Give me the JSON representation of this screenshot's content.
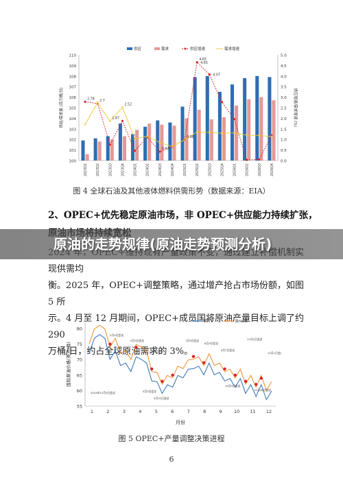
{
  "banner": {
    "title": "原油的走势规律(原油走势预测分析)"
  },
  "figure4": {
    "caption": "图 4  全球石油及其他液体燃料供需形势（数据来源：EIA）"
  },
  "section": {
    "heading_line1": "2、OPEC+优先稳定原油市场，非 OPEC+供应能力持续扩张，",
    "heading_line2": "原油市场将持续宽松",
    "para_lines": [
      "2024 年，OPEC+维持现有产量政策不变，通过建立补偿机制实现供需均",
      "衡。2025 年，OPEC+调整策略，通过增产抢占市场份额，如图 5 所",
      "示。4 月至 12 月期间，OPEC+成员国将原油产量目标上调了约 290",
      "万桶/日，约占全球原油需求的 3%。"
    ]
  },
  "figure5": {
    "caption": "图 5  OPEC+产量调整决策进程"
  },
  "page_number": "6",
  "chart_data": [
    {
      "type": "bar",
      "categories": [
        "2023Q1",
        "2023Q2",
        "2023Q3",
        "2023Q4",
        "2024Q1",
        "2024Q2",
        "2024Q3",
        "2024Q4",
        "2025Q1",
        "2025Q2",
        "2025Q3",
        "2025Q4",
        "2026Q1",
        "2026Q2",
        "2026Q3",
        "2026Q4"
      ],
      "ylabel": "供给/需求量 (百万桶/日)",
      "y2label": "供应增速/需求增速 (%)",
      "ylim": [
        100,
        110
      ],
      "y2lim": [
        0,
        5
      ],
      "yticks": [
        "100",
        "101",
        "102",
        "103",
        "104",
        "105",
        "106",
        "107",
        "108",
        "109",
        "110"
      ],
      "y2ticks": [
        "0.0",
        "0.5",
        "1.0",
        "1.5",
        "2.0",
        "2.5",
        "3.0",
        "3.5",
        "4.0",
        "4.5",
        "5.0"
      ],
      "legend": [
        "供应",
        "需求",
        "供应增速",
        "需求增速"
      ],
      "colors": {
        "supply": "#2e6db4",
        "demand": "#e39a96",
        "supply_growth": "#d9242b",
        "demand_growth": "#f2c52f"
      },
      "series": [
        {
          "name": "供应",
          "values": [
            101.9,
            102.1,
            102.3,
            103.5,
            102.5,
            103.2,
            103.8,
            103.6,
            105.1,
            107.9,
            108.0,
            106.5,
            107.2,
            107.8,
            108.0,
            107.9
          ]
        },
        {
          "name": "需求",
          "values": [
            100.6,
            101.8,
            102.0,
            102.3,
            102.9,
            103.5,
            103.4,
            103.3,
            104.0,
            104.8,
            103.9,
            104.1,
            105.2,
            105.8,
            106.0,
            105.7
          ]
        },
        {
          "name": "供应增速",
          "values": [
            2.78,
            2.7,
            0.75,
            1.87,
            0.46,
            1.11,
            0.42,
            0.66,
            0.98,
            4.65,
            4.07,
            2.77,
            1.96,
            0.03,
            0.05,
            1.19
          ]
        },
        {
          "name": "需求增速",
          "values": [
            1.71,
            2.74,
            1.87,
            2.52,
            1.03,
            1.14,
            0.86,
            0.66,
            0.98,
            1.35,
            1.33,
            1.29,
            1.31,
            1.2,
            1.19,
            1.13
          ]
        }
      ],
      "point_labels": [
        "2.78",
        "2.74",
        "1.87",
        "2.52",
        "1.71",
        "2.70",
        "0.75",
        "1.98",
        "0.48",
        "0.66",
        "1.14",
        "0.86",
        "0.42",
        "1.98",
        "0.88",
        "4.65",
        "4.07",
        "2.77",
        "1.96",
        "1.33",
        "1.29",
        "1.19",
        "0.03",
        "0.05"
      ]
    },
    {
      "type": "line",
      "xlabel": "月份",
      "ylabel": "国际原油价格(美元/桶)",
      "xticks": [
        "1",
        "2",
        "3",
        "4",
        "5",
        "6",
        "7",
        "8",
        "9",
        "10",
        "11",
        "12"
      ],
      "ylim": [
        55,
        82
      ],
      "yticks": [
        "55",
        "60",
        "65",
        "70",
        "75",
        "80"
      ],
      "legend": [
        "WTI",
        "Brent"
      ],
      "colors": {
        "WTI": "#2e6db4",
        "Brent": "#f08a24",
        "marker": "#d9242b"
      },
      "series": [
        {
          "name": "WTI",
          "values": [
            73,
            76,
            79,
            76,
            71,
            72,
            69,
            68,
            67,
            70,
            71,
            68,
            64,
            62,
            60,
            61,
            62,
            64,
            65,
            66,
            68,
            67,
            66,
            68,
            66,
            65,
            64,
            63,
            62,
            63,
            60,
            61,
            59,
            61,
            58,
            59
          ]
        },
        {
          "name": "Brent",
          "values": [
            76,
            79,
            82,
            79,
            75,
            76,
            73,
            72,
            71,
            74,
            75,
            72,
            67,
            65,
            63,
            64,
            65,
            67,
            68,
            69,
            71,
            70,
            69,
            71,
            69,
            68,
            67,
            66,
            65,
            66,
            63,
            64,
            62,
            64,
            61,
            62
          ]
        }
      ],
      "annotations": [
        "2月4日会议",
        "3月3日会议",
        "4月3日会议",
        "5月3日会议",
        "5月31日会议",
        "7月5日会议",
        "8月3日会议",
        "9月7日会议",
        "10月5日会议",
        "11月2日会议",
        "11月30日会议",
        "12月1日会议",
        "2024年12月5日会议"
      ]
    }
  ]
}
